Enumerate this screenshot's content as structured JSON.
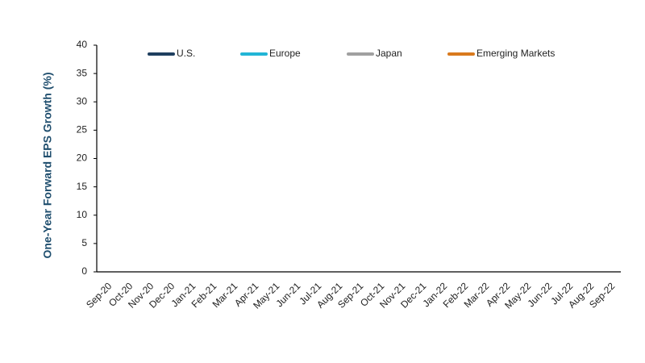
{
  "chart_data": {
    "type": "line",
    "y_label": "One-Year Forward EPS Growth (%)",
    "categories": [
      "Sep-20",
      "Oct-20",
      "Nov-20",
      "Dec-20",
      "Jan-21",
      "Feb-21",
      "Mar-21",
      "Apr-21",
      "May-21",
      "Jun-21",
      "Jul-21",
      "Aug-21",
      "Sep-21",
      "Oct-21",
      "Nov-21",
      "Dec-21",
      "Jan-22",
      "Feb-22",
      "Mar-22",
      "Apr-22",
      "May-22",
      "Jun-22",
      "Jul-22",
      "Aug-22",
      "Sep-22"
    ],
    "series": [
      {
        "name": "U.S.",
        "color": "#1f3f5f",
        "values": [
          null,
          null,
          null,
          null,
          null,
          null,
          null,
          null,
          null,
          null,
          null,
          null,
          null,
          null,
          null,
          null,
          null,
          null,
          null,
          null,
          null,
          null,
          null,
          null,
          null
        ]
      },
      {
        "name": "Europe",
        "color": "#22b5d6",
        "values": [
          null,
          null,
          null,
          null,
          null,
          null,
          null,
          null,
          null,
          null,
          null,
          null,
          null,
          null,
          null,
          null,
          null,
          null,
          null,
          null,
          null,
          null,
          null,
          null,
          null
        ]
      },
      {
        "name": "Japan",
        "color": "#a0a0a0",
        "values": [
          null,
          null,
          null,
          null,
          null,
          null,
          null,
          null,
          null,
          null,
          null,
          null,
          null,
          null,
          null,
          null,
          null,
          null,
          null,
          null,
          null,
          null,
          null,
          null,
          null
        ]
      },
      {
        "name": "Emerging Markets",
        "color": "#d97a1e",
        "values": [
          null,
          null,
          null,
          null,
          null,
          null,
          null,
          null,
          null,
          null,
          null,
          null,
          null,
          null,
          null,
          null,
          null,
          null,
          null,
          null,
          null,
          null,
          null,
          null,
          null
        ]
      }
    ],
    "ylim": [
      0,
      40
    ],
    "yticks": [
      0,
      5,
      10,
      15,
      20,
      25,
      30,
      35,
      40
    ],
    "grid": false,
    "legend": "top"
  }
}
